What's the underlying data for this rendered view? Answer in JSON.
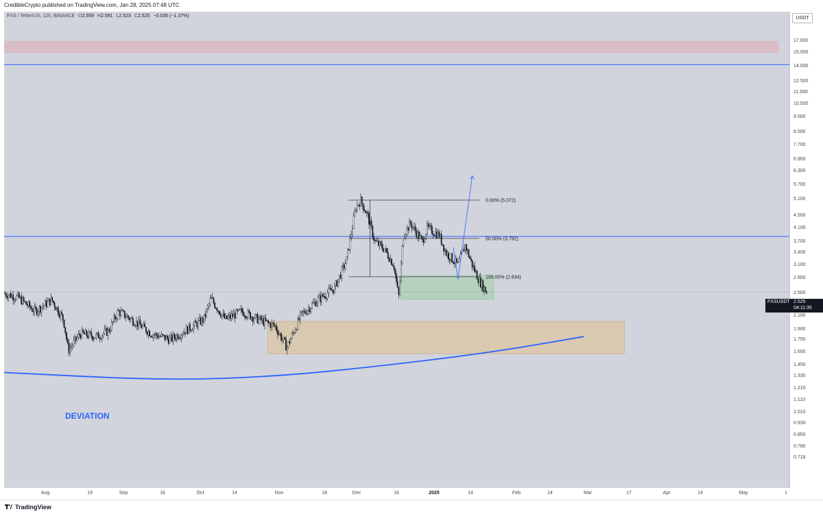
{
  "header": {
    "publisher_line": "CredibleCrypto published on TradingView.com, Jan 28, 2025 07:48 UTC"
  },
  "legend": {
    "symbol": "FXS / TetherUS, 12h, BINANCE",
    "open_label": "O",
    "open": "2.559",
    "high_label": "H",
    "high": "2.591",
    "low_label": "L",
    "low": "2.523",
    "close_label": "C",
    "close": "2.525",
    "change": "−0.035 (−1.37%)"
  },
  "currency_button": "USDT",
  "price_axis_ticks": [
    "17.000",
    "15.500",
    "14.000",
    "12.500",
    "11.500",
    "10.500",
    "9.500",
    "8.500",
    "7.700",
    "6.900",
    "6.300",
    "5.700",
    "5.100",
    "4.500",
    "4.100",
    "3.700",
    "3.400",
    "3.100",
    "2.800",
    "2.500",
    "2.300",
    "2.100",
    "1.900",
    "1.750",
    "1.600",
    "1.450",
    "1.330",
    "1.210",
    "1.110",
    "1.010",
    "0.930",
    "0.850",
    "0.780",
    "0.718"
  ],
  "time_axis_ticks": [
    {
      "label": "Aug",
      "bold": false
    },
    {
      "label": "19",
      "bold": false
    },
    {
      "label": "Sep",
      "bold": false
    },
    {
      "label": "16",
      "bold": false
    },
    {
      "label": "Oct",
      "bold": false
    },
    {
      "label": "14",
      "bold": false
    },
    {
      "label": "Nov",
      "bold": false
    },
    {
      "label": "18",
      "bold": false
    },
    {
      "label": "Dec",
      "bold": false
    },
    {
      "label": "16",
      "bold": false
    },
    {
      "label": "2025",
      "bold": true
    },
    {
      "label": "14",
      "bold": false
    },
    {
      "label": "Feb",
      "bold": false
    },
    {
      "label": "14",
      "bold": false
    },
    {
      "label": "Mar",
      "bold": false
    },
    {
      "label": "17",
      "bold": false
    },
    {
      "label": "Apr",
      "bold": false
    },
    {
      "label": "14",
      "bold": false
    },
    {
      "label": "May",
      "bold": false
    },
    {
      "label": "1",
      "bold": false
    }
  ],
  "last_price": {
    "symbol": "FXSUSDT",
    "price": "2.525",
    "countdown": "04:11:35"
  },
  "fib_levels": [
    {
      "label": "0.00% (5.072)",
      "value": 5.072
    },
    {
      "label": "50.00% (3.792)",
      "value": 3.792
    },
    {
      "label": "100.00% (2.834)",
      "value": 2.834
    }
  ],
  "annotation": "DEVIATION",
  "footer_brand": "TradingView",
  "colors": {
    "chart_bg": "#d1d4dc",
    "resistance_zone": "#d8bcc6",
    "support_zone": "#d9c9b0",
    "target_zone": "#b6d1be",
    "trend_line": "#2962ff",
    "candle": "#131722"
  },
  "chart_data": {
    "type": "candlestick",
    "symbol": "FXS / TetherUS",
    "interval": "12h",
    "exchange": "BINANCE",
    "y_scale": "log",
    "ylim": [
      0.718,
      17.0
    ],
    "x_range": [
      "2024-07-09",
      "2025-05-31"
    ],
    "horizontal_lines": [
      14.2,
      3.85
    ],
    "zones": [
      {
        "name": "resistance",
        "y": [
          15.5,
          17.0
        ],
        "x": [
          "2024-07-09",
          "2025-05-31"
        ]
      },
      {
        "name": "support",
        "y": [
          1.58,
          2.02
        ],
        "x": [
          "2024-10-28",
          "2025-03-27"
        ]
      },
      {
        "name": "target",
        "y": [
          2.39,
          2.86
        ],
        "x": [
          "2024-12-23",
          "2025-01-31"
        ]
      }
    ],
    "fib_retracement": {
      "x": [
        "2024-12-01",
        "2025-01-25"
      ],
      "levels": [
        5.072,
        3.792,
        2.834
      ]
    },
    "projection_arrow": [
      [
        "2025-01-16",
        2.78
      ],
      [
        "2025-01-22",
        6.1
      ]
    ],
    "deviation_curve": [
      [
        "2024-07-09",
        1.37
      ],
      [
        "2024-09-15",
        1.29
      ],
      [
        "2024-11-01",
        1.33
      ],
      [
        "2024-12-15",
        1.44
      ],
      [
        "2025-01-31",
        1.6
      ],
      [
        "2025-03-10",
        1.8
      ]
    ],
    "price_path": [
      [
        "2024-07-09",
        2.5
      ],
      [
        "2024-07-15",
        2.42
      ],
      [
        "2024-07-22",
        2.18
      ],
      [
        "2024-07-29",
        2.38
      ],
      [
        "2024-08-03",
        2.05
      ],
      [
        "2024-08-05",
        1.62
      ],
      [
        "2024-08-10",
        1.84
      ],
      [
        "2024-08-17",
        1.8
      ],
      [
        "2024-08-22",
        1.88
      ],
      [
        "2024-08-26",
        2.18
      ],
      [
        "2024-09-02",
        2.02
      ],
      [
        "2024-09-09",
        1.84
      ],
      [
        "2024-09-17",
        1.76
      ],
      [
        "2024-09-24",
        1.9
      ],
      [
        "2024-10-01",
        2.05
      ],
      [
        "2024-10-04",
        2.4
      ],
      [
        "2024-10-10",
        2.05
      ],
      [
        "2024-10-17",
        2.18
      ],
      [
        "2024-10-24",
        2.05
      ],
      [
        "2024-10-31",
        1.95
      ],
      [
        "2024-11-05",
        1.66
      ],
      [
        "2024-11-11",
        2.12
      ],
      [
        "2024-11-18",
        2.38
      ],
      [
        "2024-11-25",
        2.6
      ],
      [
        "2024-11-30",
        3.2
      ],
      [
        "2024-12-04",
        4.8
      ],
      [
        "2024-12-06",
        5.07
      ],
      [
        "2024-12-09",
        4.5
      ],
      [
        "2024-12-12",
        3.7
      ],
      [
        "2024-12-16",
        3.5
      ],
      [
        "2024-12-20",
        3.1
      ],
      [
        "2024-12-22",
        2.42
      ],
      [
        "2024-12-24",
        3.9
      ],
      [
        "2024-12-27",
        4.25
      ],
      [
        "2025-01-01",
        3.7
      ],
      [
        "2025-01-03",
        4.1
      ],
      [
        "2025-01-08",
        3.9
      ],
      [
        "2025-01-11",
        3.4
      ],
      [
        "2025-01-16",
        3.1
      ],
      [
        "2025-01-19",
        3.6
      ],
      [
        "2025-01-22",
        3.1
      ],
      [
        "2025-01-25",
        2.75
      ],
      [
        "2025-01-28",
        2.525
      ]
    ]
  }
}
